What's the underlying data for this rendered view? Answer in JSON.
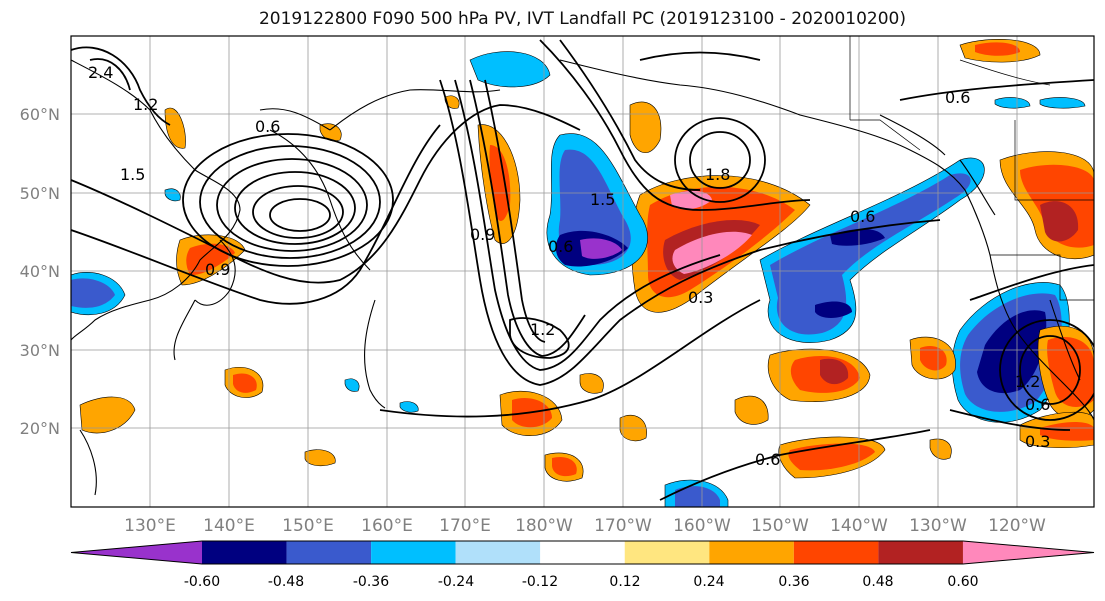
{
  "title": "2019122800 F090 500 hPa PV, IVT Landfall PC (2019123100 - 2020010200)",
  "lat_labels": [
    "60°N",
    "50°N",
    "40°N",
    "30°N",
    "20°N"
  ],
  "lon_labels": [
    "130°E",
    "140°E",
    "150°E",
    "160°E",
    "170°E",
    "180°W",
    "170°W",
    "160°W",
    "150°W",
    "140°W",
    "130°W",
    "120°W"
  ],
  "contour_labels": [
    "0.6",
    "0.9",
    "1.5",
    "1.2",
    "1.8",
    "0.6",
    "0.3",
    "0.6",
    "0.6",
    "0.9",
    "0.3",
    "1.2",
    "0.6",
    "0.6",
    "1.5",
    "1.2",
    "2.4"
  ],
  "colorbar": {
    "tick_labels": [
      "-0.60",
      "-0.48",
      "-0.36",
      "-0.24",
      "-0.12",
      "0.12",
      "0.24",
      "0.36",
      "0.48",
      "0.60"
    ],
    "colors": [
      "#9932cc",
      "#000080",
      "#3a5acd",
      "#00bfff",
      "#b0e0fa",
      "#ffffff",
      "#ffe680",
      "#ffa500",
      "#ff4500",
      "#b22222",
      "#ff88bb"
    ]
  }
}
